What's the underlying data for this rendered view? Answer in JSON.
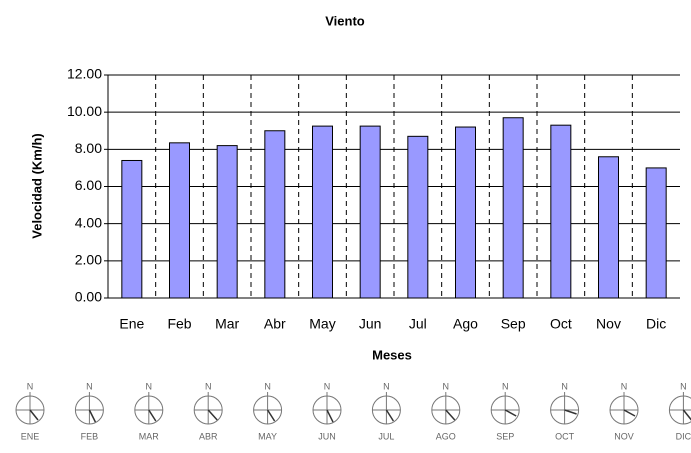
{
  "chart_data": {
    "type": "bar",
    "title": "Viento",
    "x_label": "Meses",
    "y_label": "Velocidad (Km/h)",
    "categories": [
      "Ene",
      "Feb",
      "Mar",
      "Abr",
      "May",
      "Jun",
      "Jul",
      "Ago",
      "Sep",
      "Oct",
      "Nov",
      "Dic"
    ],
    "values": [
      7.4,
      8.35,
      8.2,
      9.0,
      9.25,
      9.25,
      8.7,
      9.2,
      9.7,
      9.3,
      7.6,
      7.0
    ],
    "color": "#9999ff",
    "ylim": [
      0,
      12
    ],
    "yticks": [
      {
        "value": 0,
        "label": "0.00"
      },
      {
        "value": 2,
        "label": "2.00"
      },
      {
        "value": 4,
        "label": "4.00"
      },
      {
        "value": 6,
        "label": "6.00"
      },
      {
        "value": 8,
        "label": "8.00"
      },
      {
        "value": 10,
        "label": "10.00"
      },
      {
        "value": 12,
        "label": "12.00"
      }
    ],
    "grid": true
  },
  "compass": {
    "north": "N",
    "months": [
      "ENE",
      "FEB",
      "MAR",
      "ABR",
      "MAY",
      "JUN",
      "JUL",
      "AGO",
      "SEP",
      "OCT",
      "NOV",
      "DIC"
    ]
  }
}
